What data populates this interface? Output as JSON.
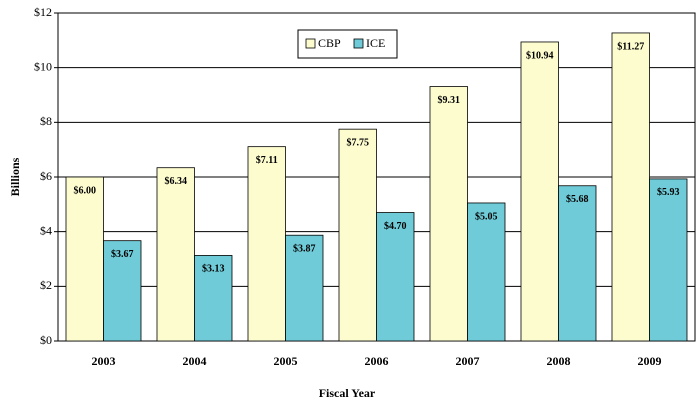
{
  "chart_data": {
    "type": "bar",
    "categories": [
      "2003",
      "2004",
      "2005",
      "2006",
      "2007",
      "2008",
      "2009"
    ],
    "series": [
      {
        "name": "CBP",
        "color": "#fdfccf",
        "values": [
          6.0,
          6.34,
          7.11,
          7.75,
          9.31,
          10.94,
          11.27
        ],
        "value_labels": [
          "$6.00",
          "$6.34",
          "$7.11",
          "$7.75",
          "$9.31",
          "$10.94",
          "$11.27"
        ]
      },
      {
        "name": "ICE",
        "color": "#6fcbd8",
        "values": [
          3.67,
          3.13,
          3.87,
          4.7,
          5.05,
          5.68,
          5.93
        ],
        "value_labels": [
          "$3.67",
          "$3.13",
          "$3.87",
          "$4.70",
          "$5.05",
          "$5.68",
          "$5.93"
        ]
      }
    ],
    "y_label": "Billions",
    "x_label": "Fiscal Year",
    "ylim": [
      0,
      12
    ],
    "yticks": [
      {
        "value": 0,
        "label": "$0"
      },
      {
        "value": 2,
        "label": "$2"
      },
      {
        "value": 4,
        "label": "$4"
      },
      {
        "value": 6,
        "label": "$6"
      },
      {
        "value": 8,
        "label": "$8"
      },
      {
        "value": 10,
        "label": "$10"
      },
      {
        "value": 12,
        "label": "$12"
      }
    ],
    "grid": true,
    "legend": "top"
  }
}
